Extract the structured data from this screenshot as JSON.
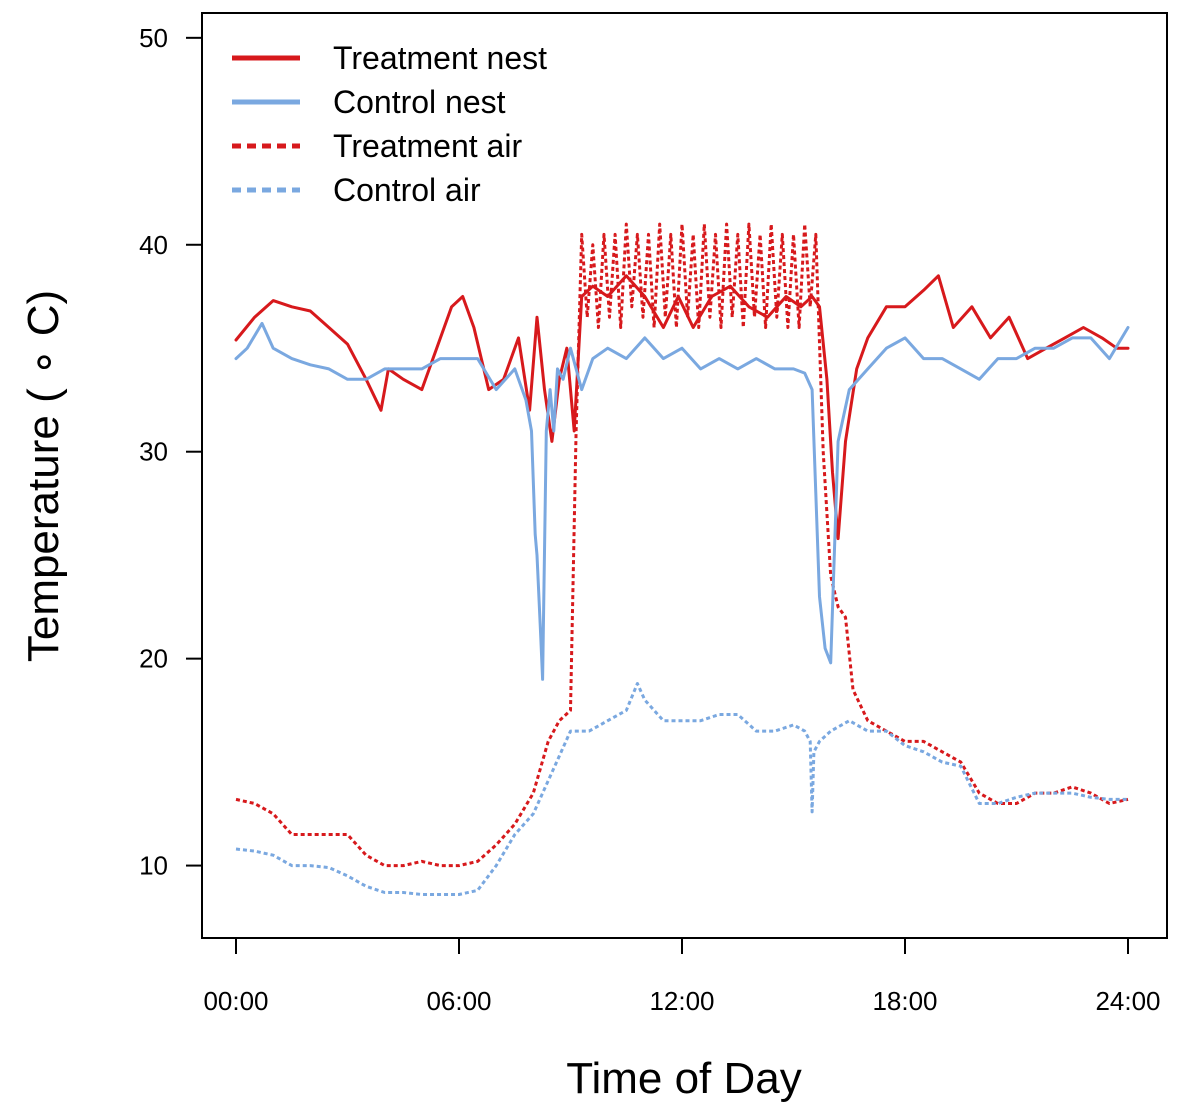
{
  "chart_data": {
    "type": "line",
    "xlabel": "Time of Day",
    "ylabel": "Temperature ( ∘ C)",
    "xlim": [
      0,
      24
    ],
    "ylim": [
      6.5,
      51.2
    ],
    "x_ticks": [
      {
        "value": 0,
        "label": "00:00"
      },
      {
        "value": 6,
        "label": "06:00"
      },
      {
        "value": 12,
        "label": "12:00"
      },
      {
        "value": 18,
        "label": "18:00"
      },
      {
        "value": 24,
        "label": "24:00"
      }
    ],
    "y_ticks": [
      {
        "value": 10,
        "label": "10"
      },
      {
        "value": 20,
        "label": "20"
      },
      {
        "value": 30,
        "label": "30"
      },
      {
        "value": 40,
        "label": "40"
      },
      {
        "value": 50,
        "label": "50"
      }
    ],
    "grid": false,
    "legend_position": "top-left",
    "colors": {
      "treatment": "#d7191c",
      "control": "#7aa8e0"
    },
    "series": [
      {
        "name": "Treatment nest",
        "color": "#d7191c",
        "dash": "solid",
        "x": [
          0,
          0.5,
          1,
          1.5,
          2,
          2.5,
          3,
          3.5,
          3.9,
          4.1,
          4.5,
          5,
          5.4,
          5.8,
          6.1,
          6.4,
          6.8,
          7.2,
          7.6,
          7.9,
          8.1,
          8.3,
          8.5,
          8.7,
          8.9,
          9.1,
          9.3,
          9.6,
          10,
          10.5,
          11,
          11.5,
          11.9,
          12.3,
          12.8,
          13.3,
          13.8,
          14.3,
          14.8,
          15.2,
          15.5,
          15.7,
          15.9,
          16.05,
          16.2,
          16.4,
          16.7,
          17,
          17.5,
          18,
          18.5,
          18.9,
          19.3,
          19.8,
          20.3,
          20.8,
          21.3,
          21.8,
          22.3,
          22.8,
          23.3,
          23.7,
          24
        ],
        "values": [
          35.4,
          36.5,
          37.3,
          37.0,
          36.8,
          36.0,
          35.2,
          33.5,
          32.0,
          34.0,
          33.5,
          33.0,
          35.0,
          37.0,
          37.5,
          36.0,
          33.0,
          33.5,
          35.5,
          32.0,
          36.5,
          33.0,
          30.5,
          33.5,
          35.0,
          31.0,
          37.5,
          38.0,
          37.5,
          38.5,
          37.5,
          36.0,
          37.5,
          36.0,
          37.5,
          38.0,
          37.0,
          36.5,
          37.5,
          37.0,
          37.5,
          37.0,
          33.5,
          29.0,
          25.8,
          30.5,
          34.0,
          35.5,
          37.0,
          37.0,
          37.8,
          38.5,
          36.0,
          37.0,
          35.5,
          36.5,
          34.5,
          35.0,
          35.5,
          36.0,
          35.5,
          35.0,
          35.0
        ]
      },
      {
        "name": "Control nest",
        "color": "#7aa8e0",
        "dash": "solid",
        "x": [
          0,
          0.3,
          0.7,
          1,
          1.5,
          2,
          2.5,
          3,
          3.5,
          4,
          4.5,
          5,
          5.5,
          6,
          6.5,
          7,
          7.5,
          7.8,
          7.95,
          8.05,
          8.1,
          8.2,
          8.25,
          8.35,
          8.45,
          8.55,
          8.65,
          8.8,
          9.0,
          9.3,
          9.6,
          10,
          10.5,
          11,
          11.5,
          12,
          12.5,
          13,
          13.5,
          14,
          14.5,
          15,
          15.3,
          15.5,
          15.6,
          15.7,
          15.85,
          16.0,
          16.2,
          16.5,
          17,
          17.5,
          18,
          18.5,
          19,
          19.5,
          20,
          20.5,
          21,
          21.5,
          22,
          22.5,
          23,
          23.5,
          24
        ],
        "values": [
          34.5,
          35.0,
          36.2,
          35.0,
          34.5,
          34.2,
          34.0,
          33.5,
          33.5,
          34.0,
          34.0,
          34.0,
          34.5,
          34.5,
          34.5,
          33.0,
          34.0,
          32.5,
          31.0,
          26.0,
          25.0,
          21.0,
          19.0,
          31.0,
          33.0,
          31.0,
          34.0,
          33.5,
          35.0,
          33.0,
          34.5,
          35.0,
          34.5,
          35.5,
          34.5,
          35.0,
          34.0,
          34.5,
          34.0,
          34.5,
          34.0,
          34.0,
          33.8,
          33.0,
          28.0,
          23.0,
          20.5,
          19.8,
          30.5,
          33.0,
          34.0,
          35.0,
          35.5,
          34.5,
          34.5,
          34.0,
          33.5,
          34.5,
          34.5,
          35.0,
          35.0,
          35.5,
          35.5,
          34.5,
          36.0
        ]
      },
      {
        "name": "Treatment air",
        "color": "#d7191c",
        "dash": "dotted",
        "x": [
          0,
          0.5,
          1,
          1.5,
          2,
          2.5,
          3,
          3.5,
          4,
          4.5,
          5,
          5.5,
          6,
          6.5,
          7,
          7.5,
          8,
          8.4,
          8.7,
          9.0,
          9.15,
          9.3,
          9.45,
          9.6,
          9.75,
          9.9,
          10.05,
          10.2,
          10.35,
          10.5,
          10.65,
          10.8,
          10.95,
          11.1,
          11.25,
          11.4,
          11.55,
          11.7,
          11.85,
          12.0,
          12.15,
          12.3,
          12.45,
          12.6,
          12.75,
          12.9,
          13.05,
          13.2,
          13.35,
          13.5,
          13.65,
          13.8,
          13.95,
          14.1,
          14.25,
          14.4,
          14.55,
          14.7,
          14.85,
          15.0,
          15.15,
          15.3,
          15.45,
          15.6,
          15.8,
          16.0,
          16.2,
          16.4,
          16.6,
          17,
          17.5,
          18,
          18.5,
          19,
          19.5,
          20,
          20.5,
          21,
          21.5,
          22,
          22.5,
          23,
          23.5,
          24
        ],
        "values": [
          13.2,
          13.0,
          12.5,
          11.5,
          11.5,
          11.5,
          11.5,
          10.5,
          10.0,
          10.0,
          10.2,
          10.0,
          10.0,
          10.2,
          11.0,
          12.0,
          13.5,
          16.0,
          17.0,
          17.5,
          31.0,
          40.5,
          36.5,
          40.0,
          36.0,
          40.5,
          36.5,
          40.5,
          36.0,
          41.0,
          37.0,
          40.5,
          36.5,
          40.5,
          36.0,
          41.0,
          36.5,
          40.5,
          36.0,
          41.0,
          36.5,
          40.5,
          36.0,
          41.0,
          36.5,
          40.5,
          36.0,
          41.0,
          36.5,
          40.5,
          36.0,
          41.0,
          36.5,
          40.5,
          36.0,
          41.0,
          36.5,
          40.5,
          36.0,
          40.5,
          36.0,
          41.0,
          37.0,
          40.5,
          30.0,
          24.0,
          22.5,
          22.0,
          18.5,
          17.0,
          16.5,
          16.0,
          16.0,
          15.5,
          15.0,
          13.5,
          13.0,
          13.0,
          13.5,
          13.5,
          13.8,
          13.5,
          13.0,
          13.2
        ]
      },
      {
        "name": "Control air",
        "color": "#7aa8e0",
        "dash": "dotted",
        "x": [
          0,
          0.5,
          1,
          1.5,
          2,
          2.5,
          3,
          3.5,
          4,
          4.5,
          5,
          5.5,
          6,
          6.5,
          7,
          7.5,
          8,
          8.5,
          9,
          9.5,
          10,
          10.5,
          10.8,
          11,
          11.5,
          12,
          12.5,
          13,
          13.5,
          14,
          14.5,
          15,
          15.3,
          15.45,
          15.5,
          15.55,
          15.7,
          16,
          16.5,
          17,
          17.5,
          18,
          18.5,
          19,
          19.5,
          20,
          20.5,
          21,
          21.5,
          22,
          22.5,
          23,
          23.5,
          24
        ],
        "values": [
          10.8,
          10.7,
          10.5,
          10.0,
          10.0,
          9.9,
          9.5,
          9.0,
          8.7,
          8.7,
          8.6,
          8.6,
          8.6,
          8.8,
          10.0,
          11.5,
          12.5,
          14.5,
          16.5,
          16.5,
          17.0,
          17.5,
          18.8,
          18.0,
          17.0,
          17.0,
          17.0,
          17.3,
          17.3,
          16.5,
          16.5,
          16.8,
          16.5,
          16.0,
          12.6,
          15.5,
          16.0,
          16.5,
          17.0,
          16.5,
          16.5,
          15.8,
          15.5,
          15.0,
          14.8,
          13.0,
          13.0,
          13.3,
          13.5,
          13.5,
          13.5,
          13.3,
          13.2,
          13.2
        ]
      }
    ]
  }
}
